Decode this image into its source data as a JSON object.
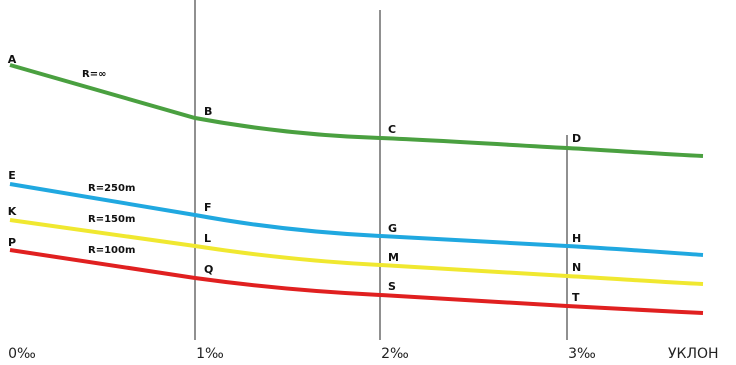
{
  "curves": [
    {
      "radius": "R=∞",
      "points": [
        "A",
        "B",
        "C",
        "D"
      ]
    },
    {
      "radius": "R=250m",
      "points": [
        "E",
        "F",
        "G",
        "H"
      ]
    },
    {
      "radius": "R=150m",
      "points": [
        "K",
        "L",
        "M",
        "N"
      ]
    },
    {
      "radius": "R=100m",
      "points": [
        "P",
        "Q",
        "S",
        "T"
      ]
    }
  ],
  "axis": {
    "ticks": [
      "0‰",
      "1‰",
      "2‰",
      "3‰"
    ],
    "title": "УКЛОН"
  }
}
